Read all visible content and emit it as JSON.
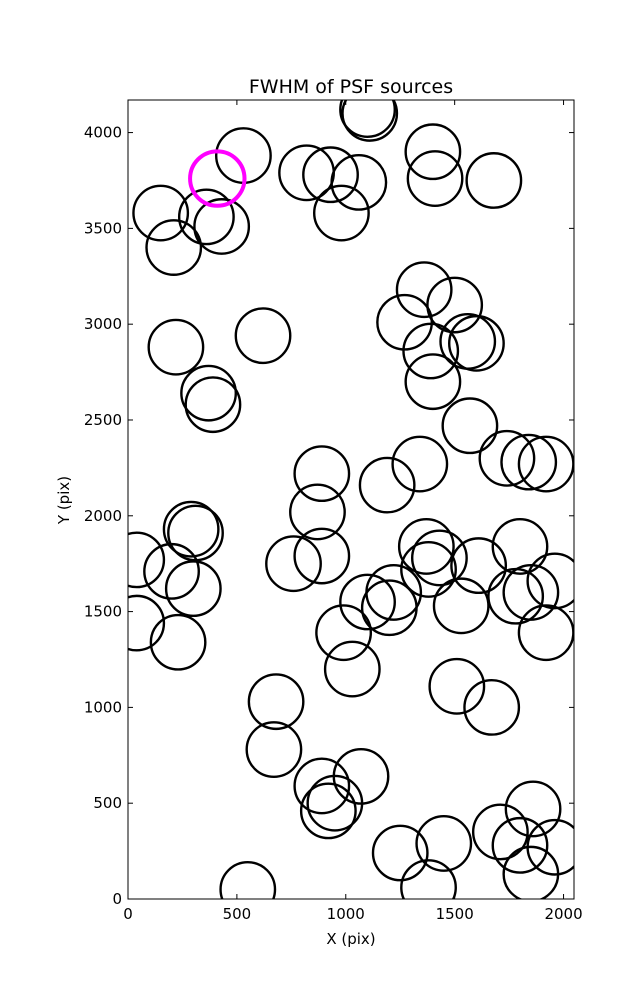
{
  "chart_data": {
    "type": "scatter",
    "title": "FWHM of PSF sources",
    "xlabel": "X (pix)",
    "ylabel": "Y (pix)",
    "xlim": [
      0,
      2048
    ],
    "ylim": [
      0,
      4170
    ],
    "xticks": [
      0,
      500,
      1000,
      1500,
      2000
    ],
    "yticks": [
      0,
      500,
      1000,
      1500,
      2000,
      2500,
      3000,
      3500,
      4000
    ],
    "grid": false,
    "highlight_color": "#ff00ff",
    "marker_color": "#000000",
    "marker_radius_units": "x-pixels",
    "marker_radius": 125,
    "points": [
      {
        "x": 1100,
        "y": 4120
      },
      {
        "x": 1110,
        "y": 4100
      },
      {
        "x": 1400,
        "y": 3900
      },
      {
        "x": 1410,
        "y": 3760
      },
      {
        "x": 1680,
        "y": 3750
      },
      {
        "x": 530,
        "y": 3880
      },
      {
        "x": 820,
        "y": 3790
      },
      {
        "x": 930,
        "y": 3780
      },
      {
        "x": 1060,
        "y": 3740
      },
      {
        "x": 980,
        "y": 3580
      },
      {
        "x": 150,
        "y": 3580
      },
      {
        "x": 360,
        "y": 3560
      },
      {
        "x": 430,
        "y": 3510
      },
      {
        "x": 210,
        "y": 3400
      },
      {
        "x": 1360,
        "y": 3180
      },
      {
        "x": 1500,
        "y": 3100
      },
      {
        "x": 1270,
        "y": 3010
      },
      {
        "x": 1560,
        "y": 2910
      },
      {
        "x": 1600,
        "y": 2900
      },
      {
        "x": 1390,
        "y": 2860
      },
      {
        "x": 1400,
        "y": 2700
      },
      {
        "x": 220,
        "y": 2880
      },
      {
        "x": 620,
        "y": 2940
      },
      {
        "x": 370,
        "y": 2640
      },
      {
        "x": 390,
        "y": 2580
      },
      {
        "x": 1570,
        "y": 2470
      },
      {
        "x": 1740,
        "y": 2300
      },
      {
        "x": 1840,
        "y": 2280
      },
      {
        "x": 1920,
        "y": 2270
      },
      {
        "x": 1340,
        "y": 2270
      },
      {
        "x": 1190,
        "y": 2160
      },
      {
        "x": 890,
        "y": 2220
      },
      {
        "x": 870,
        "y": 2020
      },
      {
        "x": 290,
        "y": 1930
      },
      {
        "x": 310,
        "y": 1910
      },
      {
        "x": 40,
        "y": 1770
      },
      {
        "x": 200,
        "y": 1710
      },
      {
        "x": 300,
        "y": 1620
      },
      {
        "x": 760,
        "y": 1750
      },
      {
        "x": 890,
        "y": 1790
      },
      {
        "x": 1370,
        "y": 1840
      },
      {
        "x": 1430,
        "y": 1780
      },
      {
        "x": 1380,
        "y": 1720
      },
      {
        "x": 1610,
        "y": 1740
      },
      {
        "x": 1800,
        "y": 1840
      },
      {
        "x": 1780,
        "y": 1580
      },
      {
        "x": 1850,
        "y": 1600
      },
      {
        "x": 1960,
        "y": 1660
      },
      {
        "x": 1220,
        "y": 1600
      },
      {
        "x": 1200,
        "y": 1520
      },
      {
        "x": 1100,
        "y": 1550
      },
      {
        "x": 1530,
        "y": 1530
      },
      {
        "x": 1920,
        "y": 1390
      },
      {
        "x": 40,
        "y": 1440
      },
      {
        "x": 230,
        "y": 1340
      },
      {
        "x": 990,
        "y": 1390
      },
      {
        "x": 1030,
        "y": 1200
      },
      {
        "x": 1510,
        "y": 1110
      },
      {
        "x": 1670,
        "y": 1000
      },
      {
        "x": 680,
        "y": 1030
      },
      {
        "x": 670,
        "y": 780
      },
      {
        "x": 1070,
        "y": 640
      },
      {
        "x": 890,
        "y": 590
      },
      {
        "x": 950,
        "y": 500
      },
      {
        "x": 920,
        "y": 460
      },
      {
        "x": 1860,
        "y": 470
      },
      {
        "x": 1710,
        "y": 350
      },
      {
        "x": 1800,
        "y": 280
      },
      {
        "x": 1960,
        "y": 270
      },
      {
        "x": 1850,
        "y": 130
      },
      {
        "x": 1450,
        "y": 290
      },
      {
        "x": 1250,
        "y": 240
      },
      {
        "x": 1380,
        "y": 60
      },
      {
        "x": 550,
        "y": 50
      }
    ],
    "highlight_points": [
      {
        "x": 410,
        "y": 3760
      }
    ]
  }
}
